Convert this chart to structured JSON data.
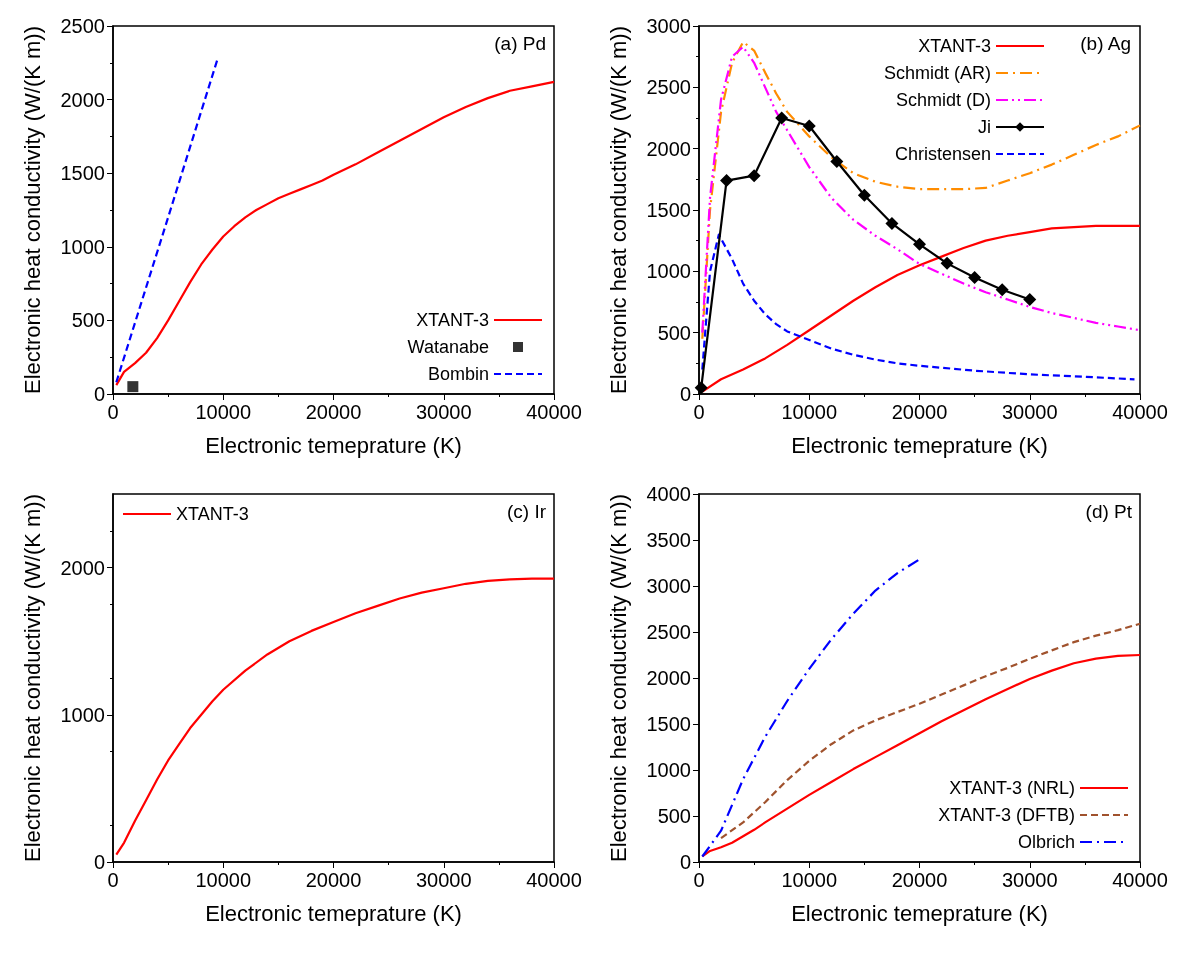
{
  "chart_data": [
    {
      "type": "line",
      "annotations": [
        "(a) Pd"
      ],
      "xlabel": "Electronic temeprature (K)",
      "ylabel": "Electronic heat conductivity (W/(K m))",
      "xlim": [
        0,
        40000
      ],
      "xticks": [
        0,
        10000,
        20000,
        30000,
        40000
      ],
      "ylim": [
        0,
        2500
      ],
      "yticks": [
        0,
        500,
        1000,
        1500,
        2000,
        2500
      ],
      "grid": false,
      "legend": "bottom right",
      "series": [
        {
          "name": "XTANT-3",
          "color": "#ff0000",
          "line_style": "solid",
          "x": [
            300,
            1000,
            2000,
            3000,
            4000,
            5000,
            6000,
            7000,
            8000,
            9000,
            10000,
            11000,
            12000,
            13000,
            14000,
            15000,
            16000,
            17000,
            18000,
            19000,
            20000,
            22000,
            24000,
            26000,
            28000,
            30000,
            32000,
            34000,
            36000,
            38000,
            40000
          ],
          "values": [
            60,
            150,
            210,
            280,
            380,
            500,
            630,
            760,
            880,
            980,
            1070,
            1140,
            1200,
            1250,
            1290,
            1330,
            1360,
            1390,
            1420,
            1450,
            1490,
            1560,
            1640,
            1720,
            1800,
            1880,
            1950,
            2010,
            2060,
            2090,
            2120
          ]
        },
        {
          "name": "Watanabe",
          "type": "scatter",
          "marker": "square",
          "color": "#000000",
          "x": [
            1800
          ],
          "values": [
            50
          ]
        },
        {
          "name": "Bombin",
          "color": "#0000ff",
          "line_style": "dashed",
          "x": [
            300,
            5000,
            9500
          ],
          "values": [
            80,
            1200,
            2280
          ]
        }
      ]
    },
    {
      "type": "line",
      "annotations": [
        "(b) Ag"
      ],
      "xlabel": "Electronic temeprature (K)",
      "ylabel": "Electronic heat conductivity (W/(K m))",
      "xlim": [
        0,
        40000
      ],
      "xticks": [
        0,
        10000,
        20000,
        30000,
        40000
      ],
      "ylim": [
        0,
        3000
      ],
      "yticks": [
        0,
        500,
        1000,
        1500,
        2000,
        2500,
        3000
      ],
      "grid": false,
      "legend": "top right",
      "series": [
        {
          "name": "XTANT-3",
          "color": "#ff0000",
          "line_style": "solid",
          "x": [
            300,
            2000,
            4000,
            6000,
            8000,
            10000,
            12000,
            14000,
            16000,
            18000,
            20000,
            22000,
            24000,
            26000,
            28000,
            30000,
            32000,
            34000,
            36000,
            38000,
            40000
          ],
          "values": [
            20,
            120,
            200,
            290,
            400,
            520,
            640,
            760,
            870,
            970,
            1050,
            1120,
            1190,
            1250,
            1290,
            1320,
            1350,
            1360,
            1370,
            1370,
            1370
          ]
        },
        {
          "name": "Schmidt (AR)",
          "color": "#ff8c00",
          "line_style": "dashdot",
          "x": [
            300,
            1000,
            2000,
            3000,
            4000,
            5000,
            6000,
            7000,
            8000,
            10000,
            12000,
            14000,
            16000,
            18000,
            20000,
            22000,
            24000,
            26000,
            28000,
            30000,
            32000,
            34000,
            36000,
            38000,
            40000
          ],
          "values": [
            450,
            1500,
            2300,
            2700,
            2870,
            2800,
            2620,
            2450,
            2300,
            2100,
            1930,
            1800,
            1730,
            1690,
            1670,
            1670,
            1670,
            1680,
            1740,
            1800,
            1870,
            1950,
            2030,
            2100,
            2190
          ]
        },
        {
          "name": "Schmidt (D)",
          "color": "#ff00ff",
          "line_style": "dashdotdot",
          "x": [
            300,
            1000,
            2000,
            3000,
            4000,
            5000,
            6000,
            7000,
            8000,
            10000,
            12000,
            14000,
            16000,
            18000,
            20000,
            22000,
            24000,
            26000,
            28000,
            30000,
            32000,
            34000,
            36000,
            38000,
            40000
          ],
          "values": [
            500,
            1600,
            2400,
            2750,
            2830,
            2700,
            2500,
            2300,
            2150,
            1850,
            1600,
            1420,
            1290,
            1180,
            1060,
            980,
            900,
            830,
            770,
            710,
            660,
            620,
            580,
            550,
            520
          ]
        },
        {
          "name": "Ji",
          "color": "#000000",
          "line_style": "solid",
          "marker": "diamond",
          "x": [
            200,
            2500,
            5000,
            7500,
            10000,
            12500,
            15000,
            17500,
            20000,
            22500,
            25000,
            27500,
            30000
          ],
          "values": [
            50,
            1740,
            1780,
            2250,
            2185,
            1895,
            1620,
            1390,
            1220,
            1065,
            950,
            850,
            770
          ]
        },
        {
          "name": "Christensen",
          "color": "#0000ff",
          "line_style": "dashed",
          "x": [
            300,
            1000,
            1800,
            3000,
            4000,
            5000,
            6000,
            7000,
            8000,
            10000,
            12000,
            14000,
            16000,
            18000,
            20000,
            25000,
            30000,
            35000,
            39500
          ],
          "values": [
            200,
            1000,
            1300,
            1100,
            900,
            760,
            650,
            570,
            510,
            440,
            370,
            320,
            280,
            250,
            230,
            190,
            160,
            140,
            120
          ]
        }
      ]
    },
    {
      "type": "line",
      "annotations": [
        "(c) Ir"
      ],
      "xlabel": "Electronic temeprature (K)",
      "ylabel": "Electronic heat conductivity (W/(K m))",
      "xlim": [
        0,
        40000
      ],
      "xticks": [
        0,
        10000,
        20000,
        30000,
        40000
      ],
      "ylim": [
        0,
        2500
      ],
      "yticks": [
        0,
        1000,
        2000
      ],
      "grid": false,
      "legend": "top left",
      "series": [
        {
          "name": "XTANT-3",
          "color": "#ff0000",
          "line_style": "solid",
          "x": [
            300,
            1000,
            2000,
            3000,
            4000,
            5000,
            6000,
            7000,
            8000,
            9000,
            10000,
            12000,
            14000,
            16000,
            18000,
            20000,
            22000,
            24000,
            26000,
            28000,
            30000,
            32000,
            34000,
            36000,
            38000,
            40000
          ],
          "values": [
            50,
            130,
            280,
            420,
            560,
            690,
            800,
            910,
            1000,
            1090,
            1170,
            1300,
            1410,
            1500,
            1570,
            1630,
            1690,
            1740,
            1790,
            1830,
            1860,
            1890,
            1910,
            1920,
            1925,
            1925
          ]
        }
      ]
    },
    {
      "type": "line",
      "annotations": [
        "(d) Pt"
      ],
      "xlabel": "Electronic temeprature (K)",
      "ylabel": "Electronic heat conductivity (W/(K m))",
      "xlim": [
        0,
        40000
      ],
      "xticks": [
        0,
        10000,
        20000,
        30000,
        40000
      ],
      "ylim": [
        0,
        4000
      ],
      "yticks": [
        0,
        500,
        1000,
        1500,
        2000,
        2500,
        3000,
        3500,
        4000
      ],
      "grid": false,
      "legend": "bottom right",
      "series": [
        {
          "name": "XTANT-3 (NRL)",
          "color": "#ff0000",
          "line_style": "solid",
          "x": [
            300,
            1000,
            2000,
            3000,
            4000,
            5000,
            6000,
            8000,
            10000,
            12000,
            14000,
            16000,
            18000,
            20000,
            22000,
            24000,
            26000,
            28000,
            30000,
            32000,
            34000,
            36000,
            38000,
            40000
          ],
          "values": [
            60,
            120,
            160,
            210,
            280,
            350,
            430,
            580,
            730,
            870,
            1010,
            1140,
            1270,
            1400,
            1530,
            1650,
            1770,
            1880,
            1990,
            2080,
            2160,
            2210,
            2240,
            2250
          ]
        },
        {
          "name": "XTANT-3 (DFTB)",
          "color": "#a0522d",
          "line_style": "dashed",
          "x": [
            2000,
            4000,
            6000,
            8000,
            10000,
            12000,
            14000,
            16000,
            18000,
            20000,
            22000,
            24000,
            26000,
            28000,
            30000,
            32000,
            34000,
            36000,
            38000,
            40000
          ],
          "values": [
            260,
            430,
            650,
            890,
            1100,
            1280,
            1430,
            1540,
            1630,
            1720,
            1820,
            1920,
            2020,
            2110,
            2210,
            2300,
            2390,
            2460,
            2520,
            2590
          ]
        },
        {
          "name": "Olbrich",
          "color": "#0000ff",
          "line_style": "dashdot",
          "x": [
            300,
            2000,
            4000,
            6000,
            8000,
            10000,
            12000,
            14000,
            16000,
            18000,
            20000
          ],
          "values": [
            60,
            340,
            900,
            1360,
            1750,
            2100,
            2420,
            2700,
            2950,
            3140,
            3290
          ]
        }
      ]
    }
  ]
}
